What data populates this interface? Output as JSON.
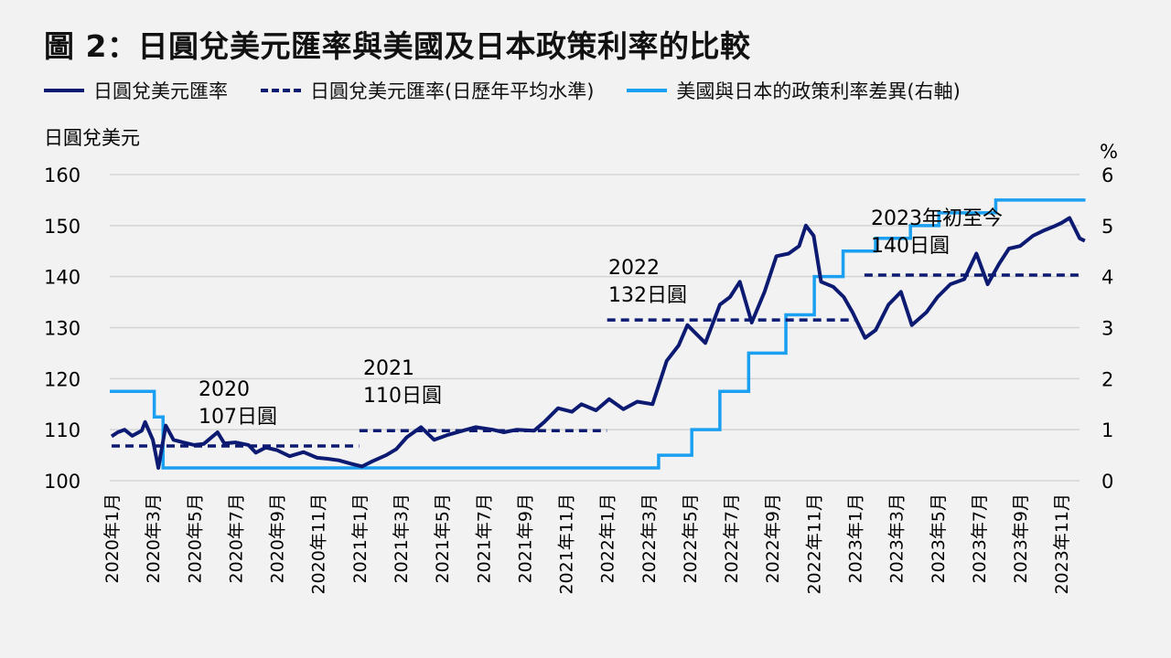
{
  "title": "圖 2：日圓兌美元匯率與美國及日本政策利率的比較",
  "chart_data": {
    "type": "line",
    "title": "圖 2：日圓兌美元匯率與美國及日本政策利率的比較",
    "ylabel": "日圓兌美元",
    "y2label": "%",
    "ylim": [
      100,
      160
    ],
    "y2lim": [
      0,
      6
    ],
    "yticks": [
      "100",
      "110",
      "120",
      "130",
      "140",
      "150",
      "160"
    ],
    "y2ticks": [
      "0",
      "1",
      "2",
      "3",
      "4",
      "5",
      "6"
    ],
    "grid": true,
    "legend_position": "top",
    "xticks": [
      "2020年1月",
      "2020年3月",
      "2020年5月",
      "2020年7月",
      "2020年9月",
      "2020年11月",
      "2021年1月",
      "2021年3月",
      "2021年5月",
      "2021年7月",
      "2021年9月",
      "2021年11月",
      "2022年1月",
      "2022年3月",
      "2022年5月",
      "2022年7月",
      "2022年9月",
      "2022年11月",
      "2023年1月",
      "2023年3月",
      "2023年5月",
      "2023年7月",
      "2023年9月",
      "2023年11月"
    ],
    "colors": {
      "fx": "#0c1a72",
      "avg": "#0c1a72",
      "diff": "#1b9ff0"
    },
    "series": [
      {
        "name": "日圓兌美元匯率",
        "axis": "left",
        "style": "solid",
        "points": [
          [
            "2020-01-01",
            108.7
          ],
          [
            "2020-01-10",
            109.5
          ],
          [
            "2020-01-20",
            110.0
          ],
          [
            "2020-02-01",
            108.8
          ],
          [
            "2020-02-15",
            109.8
          ],
          [
            "2020-02-20",
            111.5
          ],
          [
            "2020-03-01",
            108.0
          ],
          [
            "2020-03-09",
            102.5
          ],
          [
            "2020-03-20",
            110.8
          ],
          [
            "2020-04-01",
            108.0
          ],
          [
            "2020-04-15",
            107.5
          ],
          [
            "2020-05-01",
            107.0
          ],
          [
            "2020-05-15",
            107.2
          ],
          [
            "2020-06-05",
            109.5
          ],
          [
            "2020-06-15",
            107.3
          ],
          [
            "2020-07-01",
            107.5
          ],
          [
            "2020-07-20",
            107.0
          ],
          [
            "2020-07-31",
            105.5
          ],
          [
            "2020-08-15",
            106.5
          ],
          [
            "2020-09-01",
            106.0
          ],
          [
            "2020-09-20",
            104.8
          ],
          [
            "2020-10-10",
            105.6
          ],
          [
            "2020-10-30",
            104.5
          ],
          [
            "2020-11-15",
            104.3
          ],
          [
            "2020-12-01",
            104.0
          ],
          [
            "2020-12-20",
            103.3
          ],
          [
            "2021-01-05",
            102.8
          ],
          [
            "2021-01-20",
            103.8
          ],
          [
            "2021-02-10",
            105.0
          ],
          [
            "2021-02-25",
            106.2
          ],
          [
            "2021-03-10",
            108.5
          ],
          [
            "2021-03-31",
            110.5
          ],
          [
            "2021-04-20",
            108.0
          ],
          [
            "2021-05-10",
            109.0
          ],
          [
            "2021-06-01",
            109.8
          ],
          [
            "2021-06-20",
            110.5
          ],
          [
            "2021-07-15",
            110.0
          ],
          [
            "2021-08-01",
            109.5
          ],
          [
            "2021-08-20",
            110.0
          ],
          [
            "2021-09-15",
            109.8
          ],
          [
            "2021-09-30",
            111.5
          ],
          [
            "2021-10-20",
            114.2
          ],
          [
            "2021-11-10",
            113.5
          ],
          [
            "2021-11-24",
            115.0
          ],
          [
            "2021-12-15",
            113.8
          ],
          [
            "2022-01-04",
            116.0
          ],
          [
            "2022-01-25",
            114.0
          ],
          [
            "2022-02-15",
            115.5
          ],
          [
            "2022-03-07",
            115.0
          ],
          [
            "2022-03-28",
            123.5
          ],
          [
            "2022-04-15",
            126.5
          ],
          [
            "2022-04-28",
            130.5
          ],
          [
            "2022-05-24",
            127.0
          ],
          [
            "2022-06-15",
            134.5
          ],
          [
            "2022-06-30",
            136.0
          ],
          [
            "2022-07-14",
            139.0
          ],
          [
            "2022-08-01",
            131.0
          ],
          [
            "2022-08-20",
            137.0
          ],
          [
            "2022-09-07",
            144.0
          ],
          [
            "2022-09-25",
            144.5
          ],
          [
            "2022-10-10",
            146.0
          ],
          [
            "2022-10-20",
            150.0
          ],
          [
            "2022-11-01",
            148.0
          ],
          [
            "2022-11-12",
            139.0
          ],
          [
            "2022-11-30",
            138.0
          ],
          [
            "2022-12-15",
            136.0
          ],
          [
            "2022-12-28",
            133.0
          ],
          [
            "2023-01-16",
            128.0
          ],
          [
            "2023-02-01",
            129.5
          ],
          [
            "2023-02-20",
            134.5
          ],
          [
            "2023-03-08",
            137.0
          ],
          [
            "2023-03-24",
            130.5
          ],
          [
            "2023-04-15",
            133.0
          ],
          [
            "2023-05-01",
            136.0
          ],
          [
            "2023-05-20",
            138.5
          ],
          [
            "2023-06-10",
            139.5
          ],
          [
            "2023-06-28",
            144.5
          ],
          [
            "2023-07-14",
            138.5
          ],
          [
            "2023-07-31",
            142.5
          ],
          [
            "2023-08-15",
            145.5
          ],
          [
            "2023-09-01",
            146.0
          ],
          [
            "2023-09-20",
            148.0
          ],
          [
            "2023-10-05",
            149.0
          ],
          [
            "2023-10-20",
            149.8
          ],
          [
            "2023-11-01",
            150.5
          ],
          [
            "2023-11-13",
            151.5
          ],
          [
            "2023-11-28",
            147.5
          ],
          [
            "2023-12-05",
            147.0
          ]
        ]
      },
      {
        "name": "日圓兌美元匯率(日歷年平均水準)",
        "axis": "left",
        "style": "dashed",
        "segments": [
          {
            "from": "2020-01-01",
            "to": "2020-12-31",
            "value": 106.8
          },
          {
            "from": "2021-01-01",
            "to": "2021-12-31",
            "value": 109.8
          },
          {
            "from": "2022-01-01",
            "to": "2022-12-31",
            "value": 131.5
          },
          {
            "from": "2023-01-15",
            "to": "2023-11-30",
            "value": 140.3
          }
        ]
      },
      {
        "name": "美國與日本的政策利率差異(右軸)",
        "axis": "right",
        "style": "step",
        "steps": [
          [
            "2020-01-01",
            1.75
          ],
          [
            "2020-03-03",
            1.25
          ],
          [
            "2020-03-16",
            0.25
          ],
          [
            "2022-03-16",
            0.5
          ],
          [
            "2022-05-04",
            1.0
          ],
          [
            "2022-06-15",
            1.75
          ],
          [
            "2022-07-27",
            2.5
          ],
          [
            "2022-09-21",
            3.25
          ],
          [
            "2022-11-02",
            4.0
          ],
          [
            "2022-12-14",
            4.5
          ],
          [
            "2023-02-01",
            4.75
          ],
          [
            "2023-03-22",
            5.0
          ],
          [
            "2023-05-03",
            5.25
          ],
          [
            "2023-07-26",
            5.5
          ],
          [
            "2023-12-06",
            5.5
          ]
        ]
      }
    ],
    "annotations": [
      {
        "year": "2020",
        "value": "107日圓"
      },
      {
        "year": "2021",
        "value": "110日圓"
      },
      {
        "year": "2022",
        "value": "132日圓"
      },
      {
        "year": "2023年初至今",
        "value": "140日圓"
      }
    ]
  }
}
